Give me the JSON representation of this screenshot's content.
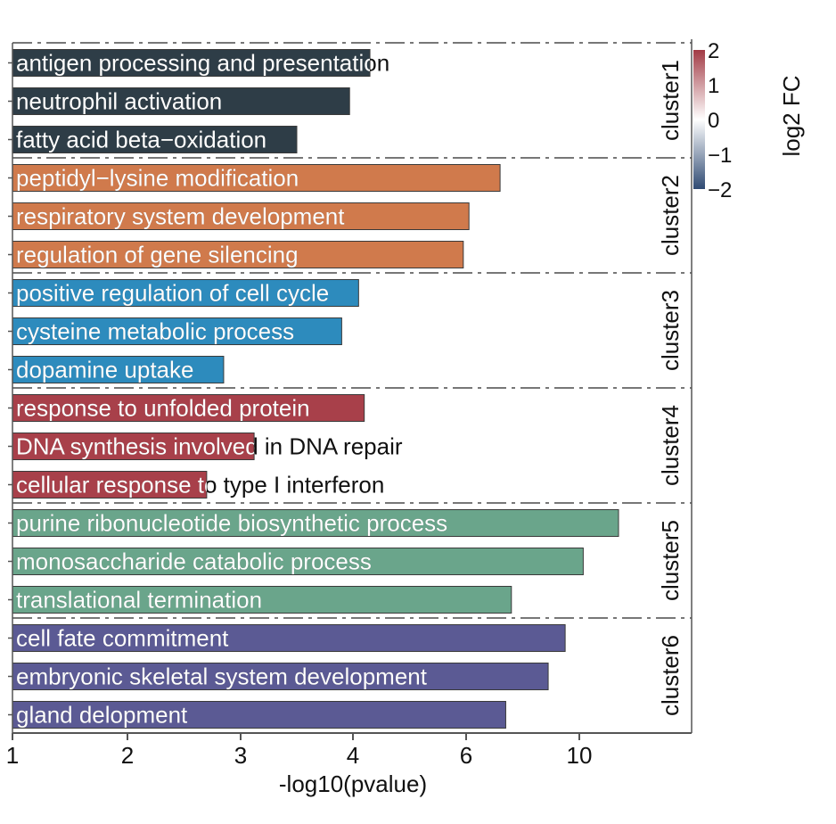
{
  "chart_data": {
    "type": "bar",
    "orientation": "horizontal",
    "xlabel": "-log10(pvalue)",
    "x_ticks": [
      "1",
      "2",
      "3",
      "4",
      "6",
      "10"
    ],
    "clusters": [
      {
        "name": "cluster1",
        "color": "#2e3d47",
        "terms": [
          {
            "label": "antigen processing and presentation",
            "value": 4.3
          },
          {
            "label": "neutrophil activation",
            "value": 3.97
          },
          {
            "label": "fatty acid beta−oxidation",
            "value": 3.5
          }
        ]
      },
      {
        "name": "cluster2",
        "color": "#d07a4c",
        "terms": [
          {
            "label": "peptidyl−lysine modification",
            "value": 7.2
          },
          {
            "label": "respiratory system development",
            "value": 6.1
          },
          {
            "label": "regulation of gene silencing",
            "value": 5.95
          }
        ]
      },
      {
        "name": "cluster3",
        "color": "#2d8bbd",
        "terms": [
          {
            "label": "positive regulation of cell cycle",
            "value": 4.1
          },
          {
            "label": "cysteine metabolic process",
            "value": 3.9
          },
          {
            "label": "dopamine uptake",
            "value": 2.85
          }
        ]
      },
      {
        "name": "cluster4",
        "color": "#a8404a",
        "terms": [
          {
            "label": "response to unfolded protein",
            "value": 4.2
          },
          {
            "label": "DNA synthesis involved in DNA repair",
            "value": 3.12
          },
          {
            "label": "cellular response to type I interferon",
            "value": 2.7
          }
        ]
      },
      {
        "name": "cluster5",
        "color": "#6aa58b",
        "terms": [
          {
            "label": "purine ribonucleotide biosynthetic process",
            "value": 12.0
          },
          {
            "label": "monosaccharide catabolic process",
            "value": 10.2
          },
          {
            "label": "translational termination",
            "value": 7.6
          }
        ]
      },
      {
        "name": "cluster6",
        "color": "#5b5a94",
        "terms": [
          {
            "label": "cell fate commitment",
            "value": 9.5
          },
          {
            "label": "embryonic skeletal system development",
            "value": 8.9
          },
          {
            "label": "gland delopment",
            "value": 7.4
          }
        ]
      }
    ],
    "colorbar": {
      "title": "log2 FC",
      "ticks": [
        "2",
        "1",
        "0",
        "−1",
        "−2"
      ],
      "range": [
        -2,
        2
      ],
      "colors": [
        "#a23b45",
        "#ffffff",
        "#2f4a73"
      ]
    }
  }
}
